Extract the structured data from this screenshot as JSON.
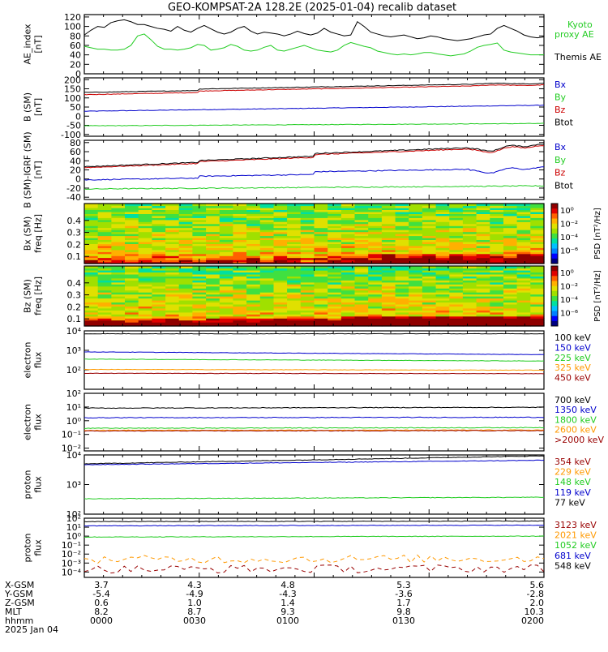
{
  "title": "GEO-KOMPSAT-2A 128.2E (2025-01-04) recalib dataset",
  "colors": {
    "black": "#000000",
    "blue": "#0000cc",
    "green": "#22cc22",
    "red": "#cc0000",
    "orange": "#ff9900",
    "darkred": "#990000"
  },
  "chart_data": [
    {
      "type": "line",
      "ylabel": [
        "AE_index",
        "[nT]"
      ],
      "ylim": [
        0,
        125
      ],
      "yticks": [
        "0",
        "20",
        "40",
        "60",
        "80",
        "100",
        "120"
      ],
      "series": [
        {
          "name": "Kyoto proxy AE",
          "legend": [
            "Kyoto",
            "proxy AE"
          ],
          "color": "green",
          "values": [
            58,
            55,
            52,
            52,
            50,
            50,
            52,
            60,
            80,
            84,
            72,
            58,
            52,
            52,
            50,
            52,
            55,
            62,
            60,
            50,
            52,
            55,
            62,
            58,
            50,
            48,
            50,
            56,
            60,
            50,
            48,
            52,
            56,
            60,
            55,
            50,
            48,
            46,
            50,
            60,
            66,
            62,
            58,
            55,
            48,
            45,
            42,
            40,
            42,
            40,
            42,
            45,
            45,
            42,
            40,
            38,
            40,
            42,
            48,
            56,
            60,
            62,
            65,
            50,
            46,
            44,
            42,
            40,
            40,
            40
          ]
        },
        {
          "name": "Themis AE",
          "legend": [
            "Themis AE"
          ],
          "color": "black",
          "values": [
            82,
            92,
            100,
            98,
            108,
            112,
            114,
            110,
            104,
            104,
            100,
            96,
            94,
            90,
            100,
            92,
            88,
            96,
            102,
            95,
            88,
            84,
            88,
            96,
            100,
            90,
            84,
            88,
            86,
            84,
            80,
            84,
            90,
            85,
            82,
            86,
            96,
            88,
            84,
            80,
            82,
            110,
            100,
            88,
            84,
            80,
            78,
            80,
            82,
            78,
            74,
            76,
            80,
            78,
            74,
            72,
            70,
            72,
            74,
            78,
            82,
            84,
            96,
            102,
            96,
            90,
            82,
            78,
            76,
            78
          ]
        }
      ]
    },
    {
      "type": "line",
      "ylabel": [
        "B (SM)",
        "[nT]"
      ],
      "ylim": [
        -110,
        210
      ],
      "yticks": [
        "-100",
        "-50",
        "0",
        "50",
        "100",
        "150",
        "200"
      ],
      "series": [
        {
          "name": "Bx",
          "color": "blue",
          "start": 27,
          "end": 60
        },
        {
          "name": "By",
          "color": "green",
          "start": -53,
          "end": -40
        },
        {
          "name": "Bz",
          "color": "red",
          "start": 118,
          "end": 165
        },
        {
          "name": "Btot",
          "color": "black",
          "start": 130,
          "end": 174
        }
      ]
    },
    {
      "type": "line",
      "ylabel": [
        "B (SM)-IGRF (SM)",
        "[nT]"
      ],
      "ylim": [
        -45,
        85
      ],
      "yticks": [
        "-40",
        "-20",
        "0",
        "20",
        "40",
        "60",
        "80"
      ],
      "series": [
        {
          "name": "Bx",
          "color": "blue",
          "start": -2,
          "end": 14
        },
        {
          "name": "By",
          "color": "green",
          "start": -22,
          "end": -15
        },
        {
          "name": "Bz",
          "color": "red",
          "start": 25,
          "end": 62
        },
        {
          "name": "Btot",
          "color": "black",
          "start": 27,
          "end": 65
        }
      ]
    },
    {
      "type": "heatmap",
      "ylabel": [
        "Bx (SM)",
        "freq [Hz]"
      ],
      "yticks": [
        "0.1",
        "0.2",
        "0.3",
        "0.4"
      ],
      "colorbar": "PSD [nT²/Hz]",
      "cticks": [
        "10⁰",
        "10⁻²",
        "10⁻⁴",
        "10⁻⁶"
      ]
    },
    {
      "type": "heatmap",
      "ylabel": [
        "Bz (SM)",
        "freq [Hz]"
      ],
      "yticks": [
        "0.1",
        "0.2",
        "0.3",
        "0.4"
      ],
      "colorbar": "PSD [nT²/Hz]",
      "cticks": [
        "10⁰",
        "10⁻²",
        "10⁻⁴",
        "10⁻⁶"
      ]
    },
    {
      "type": "line",
      "ylabel": [
        "electron",
        "flux"
      ],
      "scale": "log",
      "ylim": [
        1,
        4
      ],
      "yticks": [
        "10²",
        "10³",
        "10⁴"
      ],
      "series": [
        {
          "name": "100 keV",
          "color": "black",
          "start": 3.85,
          "end": 3.85
        },
        {
          "name": "150 keV",
          "color": "blue",
          "start": 2.92,
          "end": 2.78
        },
        {
          "name": "225 keV",
          "color": "green",
          "start": 2.55,
          "end": 2.45
        },
        {
          "name": "325 keV",
          "color": "orange",
          "start": 2.02,
          "end": 1.98
        },
        {
          "name": "450 keV",
          "color": "darkred",
          "start": 1.82,
          "end": 1.8
        }
      ]
    },
    {
      "type": "line",
      "ylabel": [
        "electron",
        "flux"
      ],
      "scale": "log",
      "ylim": [
        -2.2,
        2
      ],
      "yticks": [
        "10⁻²",
        "10⁻¹",
        "10⁰",
        "10¹",
        "10²"
      ],
      "series": [
        {
          "name": "700 keV",
          "color": "black",
          "start": 0.92,
          "end": 0.98
        },
        {
          "name": "1350 keV",
          "color": "blue",
          "start": 0.22,
          "end": 0.25
        },
        {
          "name": "1800 keV",
          "color": "green",
          "start": -0.55,
          "end": -0.5
        },
        {
          "name": "2600 keV",
          "color": "orange",
          "start": -0.7,
          "end": -0.68
        },
        {
          "name": ">2000 keV",
          "color": "darkred",
          "start": -0.75,
          "end": -0.72
        }
      ]
    },
    {
      "type": "line",
      "ylabel": [
        "proton",
        "flux"
      ],
      "scale": "log",
      "ylim": [
        2,
        4
      ],
      "yticks": [
        "10²",
        "10³",
        "10⁴"
      ],
      "series": [
        {
          "name": "354 keV",
          "color": "darkred",
          "start": 2.0,
          "end": 2.0
        },
        {
          "name": "229 keV",
          "color": "orange",
          "start": 2.0,
          "end": 2.0
        },
        {
          "name": "148 keV",
          "color": "green",
          "start": 2.52,
          "end": 2.57
        },
        {
          "name": "119 keV",
          "color": "blue",
          "start": 3.67,
          "end": 3.82
        },
        {
          "name": "77 keV",
          "color": "black",
          "start": 3.7,
          "end": 3.97
        }
      ]
    },
    {
      "type": "line",
      "ylabel": [
        "proton",
        "flux"
      ],
      "scale": "log",
      "ylim": [
        -4.6,
        2
      ],
      "yticks": [
        "10⁻⁴",
        "10⁻³",
        "10⁻²",
        "10⁻¹",
        "10⁰",
        "10¹",
        "10²"
      ],
      "series": [
        {
          "name": "3123 keV",
          "color": "darkred",
          "start": -3.7,
          "end": -3.6
        },
        {
          "name": "2021 keV",
          "color": "orange",
          "start": -2.6,
          "end": -2.5
        },
        {
          "name": "1052 keV",
          "color": "green",
          "start": -0.1,
          "end": 0.0
        },
        {
          "name": "681 keV",
          "color": "blue",
          "start": 1.15,
          "end": 1.22
        },
        {
          "name": "548 keV",
          "color": "black",
          "start": 1.62,
          "end": 1.68
        }
      ]
    }
  ],
  "xaxis": {
    "row_labels": [
      "X-GSM",
      "Y-GSM",
      "Z-GSM",
      "MLT",
      "hhmm",
      "2025 Jan 04"
    ],
    "ticks": [
      [
        "3.7",
        "-5.4",
        "0.6",
        "8.2",
        "0000"
      ],
      [
        "4.3",
        "-4.9",
        "1.0",
        "8.7",
        "0030"
      ],
      [
        "4.8",
        "-4.3",
        "1.4",
        "9.3",
        "0100"
      ],
      [
        "5.3",
        "-3.6",
        "1.7",
        "9.8",
        "0130"
      ],
      [
        "5.6",
        "-2.8",
        "2.0",
        "10.3",
        "0200"
      ]
    ]
  }
}
